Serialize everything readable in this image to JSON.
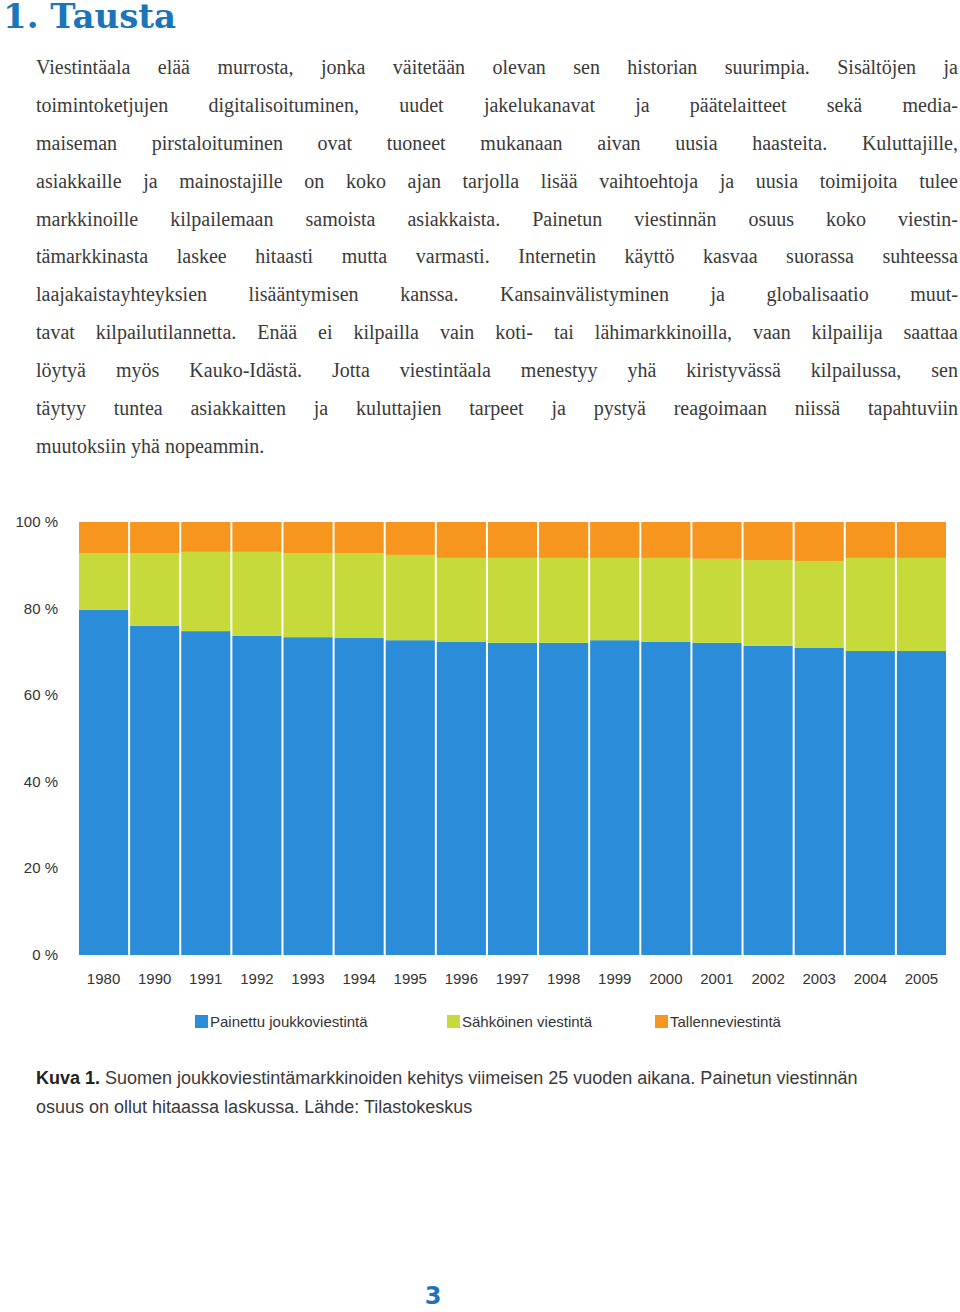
{
  "heading": "1. Tausta",
  "paragraph_lines": [
    "Viestintäala elää murrosta, jonka väitetään olevan sen historian suurimpia. Sisältöjen ja",
    "toimintoketjujen digitalisoituminen, uudet jakelukanavat ja päätelaitteet sekä media-",
    "maiseman pirstaloituminen ovat tuoneet mukanaan aivan uusia haasteita. Kuluttajille,",
    "asiakkaille ja mainostajille on koko ajan tarjolla lisää vaihtoehtoja ja uusia toimijoita tulee",
    "markkinoille kilpailemaan samoista asiakkaista. Painetun viestinnän osuus koko viestin-",
    "tämarkkinasta laskee hitaasti mutta varmasti. Internetin käyttö kasvaa suorassa suhteessa",
    "laajakaistayhteyksien lisääntymisen kanssa. Kansainvälistyminen ja globalisaatio muut-",
    "tavat kilpailutilannetta. Enää ei kilpailla vain koti- tai lähimarkkinoilla, vaan kilpailija saattaa",
    "löytyä myös Kauko-Idästä. Jotta viestintäala menestyy yhä kiristyvässä kilpailussa, sen",
    "täytyy tuntea asiakkaitten ja kuluttajien tarpeet ja pystyä reagoimaan niissä tapahtuviin",
    "muutoksiin yhä nopeammin."
  ],
  "chart_data": {
    "type": "bar",
    "stacked": true,
    "grid": false,
    "legend": "bottom",
    "categories": [
      "1980",
      "1990",
      "1991",
      "1992",
      "1993",
      "1994",
      "1995",
      "1996",
      "1997",
      "1998",
      "1999",
      "2000",
      "2001",
      "2002",
      "2003",
      "2004",
      "2005"
    ],
    "series": [
      {
        "name": "Painettu joukkoviestintä",
        "color": "#2b8cd9",
        "values": [
          79.7,
          76.0,
          74.8,
          73.7,
          73.4,
          73.2,
          72.7,
          72.3,
          72.1,
          72.1,
          72.7,
          72.3,
          72.1,
          71.4,
          70.9,
          70.2,
          70.2
        ]
      },
      {
        "name": "Sähköinen viestintä",
        "color": "#c6da3b",
        "values": [
          13.1,
          16.8,
          18.3,
          19.4,
          19.4,
          19.6,
          19.7,
          19.4,
          19.6,
          19.6,
          19.0,
          19.4,
          19.4,
          19.8,
          20.1,
          21.5,
          21.5
        ]
      },
      {
        "name": "Tallenneviestintä",
        "color": "#f6961f",
        "values": [
          7.2,
          7.2,
          6.9,
          6.9,
          7.2,
          7.2,
          7.6,
          8.3,
          8.3,
          8.3,
          8.3,
          8.3,
          8.5,
          8.8,
          9.0,
          8.3,
          8.3
        ]
      }
    ],
    "ylim": [
      0,
      100
    ],
    "yticks": [
      {
        "value": 0,
        "label": "0 %"
      },
      {
        "value": 20,
        "label": "20 %"
      },
      {
        "value": 40,
        "label": "40 %"
      },
      {
        "value": 60,
        "label": "60 %"
      },
      {
        "value": 80,
        "label": "80 %"
      },
      {
        "value": 100,
        "label": "100 %"
      }
    ]
  },
  "caption": {
    "label": "Kuva 1.",
    "lines": [
      "Suomen joukkoviestintämarkkinoiden kehitys viimeisen 25 vuoden aikana. Painetun viestinnän",
      "osuus on ollut hitaassa laskussa. Lähde: Tilastokeskus"
    ]
  },
  "page_number": 3
}
